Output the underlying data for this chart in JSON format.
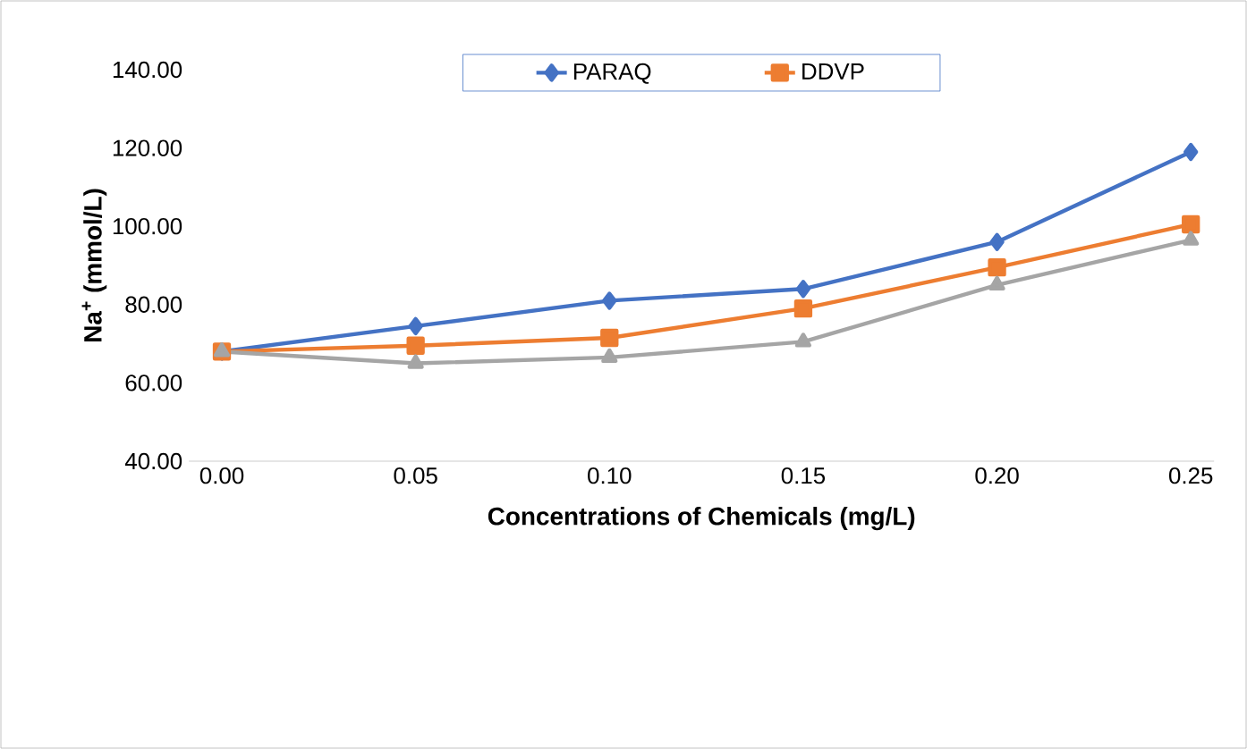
{
  "chart_data": {
    "type": "line",
    "xlabel": "Concentrations of Chemicals (mg/L)",
    "ylabel": "Na$^{+}$ (mmol/L)",
    "categories": [
      "0.00",
      "0.05",
      "0.10",
      "0.15",
      "0.20",
      "0.25"
    ],
    "series": [
      {
        "name": "PARAQ",
        "color": "#4472c4",
        "marker": "diamond",
        "values": [
          68.0,
          74.5,
          81.0,
          84.0,
          96.0,
          119.0
        ]
      },
      {
        "name": "DDVP",
        "color": "#ed7d31",
        "marker": "square",
        "values": [
          68.0,
          69.5,
          71.5,
          79.0,
          89.5,
          100.5
        ]
      },
      {
        "color": "#a5a5a5",
        "marker": "triangle",
        "values": [
          68.0,
          65.0,
          66.5,
          70.5,
          85.0,
          96.5
        ]
      }
    ],
    "ylim": [
      40,
      140
    ],
    "yticks": [
      {
        "value": 40,
        "label": "40.00"
      },
      {
        "value": 60,
        "label": "60.00"
      },
      {
        "value": 80,
        "label": "80.00"
      },
      {
        "value": 100,
        "label": "100.00"
      },
      {
        "value": 120,
        "label": "120.00"
      },
      {
        "value": 140,
        "label": "140.00"
      }
    ],
    "legend": "top",
    "line_style": "solid"
  }
}
